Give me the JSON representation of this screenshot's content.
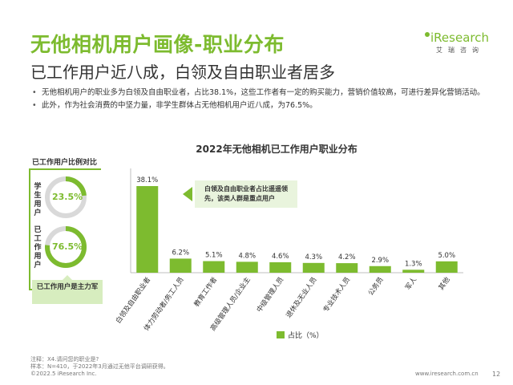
{
  "header": {
    "title": "无他相机用户画像-职业分布",
    "subtitle": "已工作用户近八成，白领及自由职业者居多"
  },
  "logo": {
    "main": "iResearch",
    "sub": "艾瑞咨询"
  },
  "bullets": [
    "无他相机用户的职业多为白领及自由职业者，占比38.1%，这些工作者有一定的购买能力，营销价值较高，可进行差异化营销活动。",
    "此外，作为社会消费的中坚力量，非学生群体占无他相机用户近八成，为76.5%。"
  ],
  "left_panel": {
    "title": "已工作用户比例对比",
    "student_label": "学生用户",
    "student_pct": "23.5%",
    "worker_label": "已工作用户",
    "worker_pct": "76.5%",
    "callout": "已工作用户是主力军"
  },
  "colors": {
    "accent": "#7dbb2f",
    "track": "#d9d9d9",
    "light": "#e9f4dd"
  },
  "annotation": "白领及自由职业者占比遥遥领先，该类人群是重点用户",
  "legend_label": "占比（%）",
  "chart_data": [
    {
      "type": "pie",
      "categories": [
        "学生用户",
        "其他"
      ],
      "values": [
        23.5,
        76.5
      ]
    },
    {
      "type": "pie",
      "categories": [
        "已工作用户",
        "其他"
      ],
      "values": [
        76.5,
        23.5
      ]
    },
    {
      "type": "bar",
      "title": "2022年无他相机已工作用户职业分布",
      "categories": [
        "白领及自由职业者",
        "体力劳动者/务工人员",
        "教育工作者",
        "高级管理人员/企业主",
        "中级管理人员",
        "退休及无业人员",
        "专业技术人员",
        "公务员",
        "军人",
        "其他"
      ],
      "values": [
        38.1,
        6.2,
        5.1,
        4.8,
        4.6,
        4.3,
        4.2,
        2.9,
        1.3,
        5.0
      ],
      "data_labels": [
        "38.1%",
        "6.2%",
        "5.1%",
        "4.8%",
        "4.6%",
        "4.3%",
        "4.2%",
        "2.9%",
        "1.3%",
        "5.0%"
      ],
      "series": [
        {
          "name": "占比（%）",
          "values": [
            38.1,
            6.2,
            5.1,
            4.8,
            4.6,
            4.3,
            4.2,
            2.9,
            1.3,
            5.0
          ]
        }
      ],
      "ylim": [
        0,
        40
      ],
      "grid": false,
      "legend": "bottom"
    }
  ],
  "footer": {
    "note1": "注释：X4.请问您的职业是?",
    "note2": "样本：N=410，于2022年3月通过无他平台调研获得。",
    "copyright": "©2022.5 iResearch Inc.",
    "site": "www.iresearch.com.cn",
    "page": "12"
  }
}
